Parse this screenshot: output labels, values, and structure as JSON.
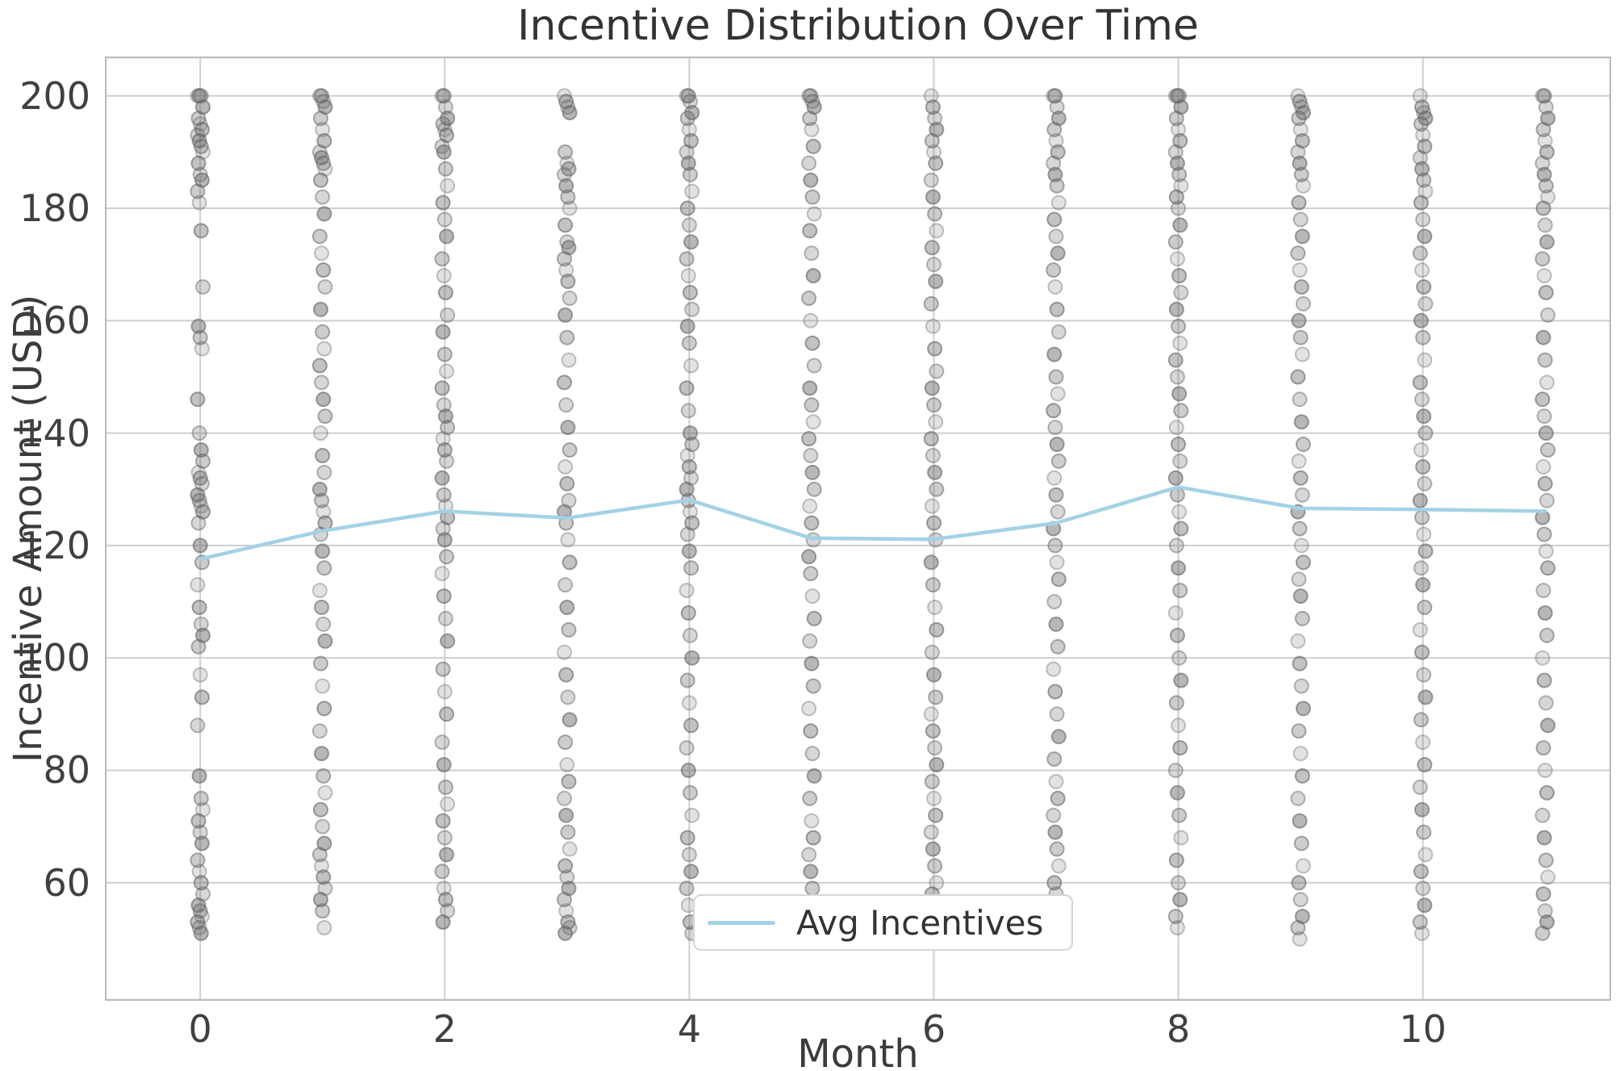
{
  "chart_data": {
    "type": "scatter",
    "title": "Incentive Distribution Over Time",
    "xlabel": "Month",
    "ylabel": "Incentive Amount (USD)",
    "xlim": [
      -0.78,
      11.54
    ],
    "ylim": [
      39,
      207
    ],
    "grid": true,
    "xticks": [
      0,
      2,
      4,
      6,
      8,
      10
    ],
    "yticks": [
      60,
      80,
      100,
      120,
      140,
      160,
      180,
      200
    ],
    "legend": {
      "label": "Avg Incentives",
      "position": "lower center"
    },
    "series": [
      {
        "name": "Avg Incentives",
        "kind": "line",
        "x": [
          0,
          1,
          2,
          3,
          4,
          5,
          6,
          7,
          8,
          9,
          10,
          11
        ],
        "y": [
          117.6,
          122.6,
          126.1,
          124.9,
          128.1,
          121.3,
          121.1,
          124.0,
          130.4,
          126.6,
          126.4,
          126.1
        ]
      }
    ],
    "scatter_points": {
      "months": [
        0,
        1,
        2,
        3,
        4,
        5,
        6,
        7,
        8,
        9,
        10,
        11
      ],
      "values_by_month": [
        [
          200,
          200,
          200,
          198,
          196,
          195,
          194,
          193,
          192,
          191,
          190,
          188,
          186,
          185,
          183,
          181,
          176,
          166,
          159,
          157,
          155,
          146,
          140,
          137,
          135,
          133,
          132,
          131,
          129,
          128,
          127,
          126,
          124,
          120,
          117,
          113,
          109,
          106,
          104,
          102,
          97,
          93,
          88,
          79,
          75,
          73,
          71,
          69,
          67,
          64,
          62,
          60,
          58,
          56,
          55,
          54,
          53,
          52,
          51
        ],
        [
          200,
          200,
          199,
          198,
          196,
          194,
          192,
          190,
          189,
          188,
          187,
          185,
          182,
          179,
          175,
          172,
          169,
          166,
          162,
          158,
          155,
          152,
          149,
          146,
          143,
          140,
          136,
          133,
          130,
          128,
          126,
          124,
          122,
          119,
          116,
          112,
          109,
          106,
          103,
          99,
          95,
          91,
          87,
          83,
          79,
          76,
          73,
          70,
          67,
          65,
          63,
          61,
          59,
          57,
          55,
          52
        ],
        [
          200,
          200,
          198,
          196,
          195,
          194,
          193,
          191,
          190,
          187,
          184,
          181,
          178,
          175,
          171,
          168,
          165,
          161,
          158,
          154,
          151,
          148,
          145,
          143,
          141,
          139,
          137,
          135,
          132,
          129,
          127,
          125,
          123,
          121,
          118,
          115,
          111,
          107,
          103,
          98,
          94,
          90,
          85,
          81,
          77,
          74,
          71,
          68,
          65,
          62,
          59,
          57,
          55,
          53
        ],
        [
          200,
          199,
          198,
          197,
          190,
          188,
          187,
          186,
          184,
          182,
          180,
          177,
          174,
          173,
          171,
          169,
          167,
          164,
          161,
          157,
          153,
          149,
          145,
          141,
          137,
          134,
          131,
          128,
          126,
          124,
          121,
          117,
          113,
          109,
          105,
          101,
          97,
          93,
          89,
          85,
          81,
          78,
          75,
          72,
          69,
          66,
          63,
          61,
          59,
          57,
          55,
          53,
          52,
          51
        ],
        [
          200,
          200,
          199,
          197,
          196,
          194,
          192,
          190,
          188,
          186,
          183,
          180,
          177,
          174,
          171,
          168,
          165,
          162,
          159,
          156,
          152,
          148,
          144,
          140,
          138,
          136,
          134,
          132,
          130,
          128,
          126,
          124,
          122,
          119,
          116,
          112,
          108,
          104,
          100,
          96,
          92,
          88,
          84,
          80,
          76,
          72,
          68,
          65,
          62,
          59,
          56,
          53,
          51
        ],
        [
          200,
          200,
          199,
          198,
          196,
          194,
          191,
          188,
          185,
          182,
          179,
          176,
          172,
          168,
          164,
          160,
          156,
          152,
          148,
          145,
          142,
          139,
          136,
          133,
          130,
          127,
          124,
          121,
          118,
          115,
          111,
          107,
          103,
          99,
          95,
          91,
          87,
          83,
          79,
          75,
          71,
          68,
          65,
          62,
          59,
          56,
          54,
          52,
          50
        ],
        [
          200,
          198,
          196,
          194,
          192,
          190,
          188,
          185,
          182,
          179,
          176,
          173,
          170,
          167,
          163,
          159,
          155,
          151,
          148,
          145,
          142,
          139,
          136,
          133,
          130,
          127,
          124,
          121,
          117,
          113,
          109,
          105,
          101,
          97,
          93,
          90,
          87,
          84,
          81,
          78,
          75,
          72,
          69,
          66,
          63,
          60,
          58,
          56
        ],
        [
          200,
          200,
          198,
          196,
          194,
          192,
          190,
          188,
          186,
          184,
          181,
          178,
          175,
          172,
          169,
          166,
          162,
          158,
          154,
          150,
          147,
          144,
          141,
          138,
          135,
          132,
          129,
          126,
          123,
          120,
          117,
          114,
          110,
          106,
          102,
          98,
          94,
          90,
          86,
          82,
          78,
          75,
          72,
          69,
          66,
          63,
          60,
          58,
          56,
          54,
          52,
          50
        ],
        [
          200,
          200,
          200,
          198,
          196,
          194,
          192,
          190,
          188,
          186,
          184,
          182,
          180,
          177,
          174,
          171,
          168,
          165,
          162,
          159,
          156,
          153,
          150,
          147,
          144,
          141,
          138,
          135,
          132,
          129,
          126,
          123,
          120,
          116,
          112,
          108,
          104,
          100,
          96,
          92,
          88,
          84,
          80,
          76,
          72,
          68,
          64,
          60,
          57,
          54,
          52
        ],
        [
          200,
          199,
          198,
          197,
          196,
          194,
          192,
          190,
          188,
          186,
          184,
          181,
          178,
          175,
          172,
          169,
          166,
          163,
          160,
          157,
          154,
          150,
          146,
          142,
          138,
          135,
          132,
          129,
          126,
          123,
          120,
          117,
          114,
          111,
          107,
          103,
          99,
          95,
          91,
          87,
          83,
          79,
          75,
          71,
          67,
          63,
          60,
          57,
          54,
          52,
          50
        ],
        [
          200,
          198,
          197,
          196,
          195,
          193,
          191,
          189,
          187,
          185,
          183,
          181,
          178,
          175,
          172,
          169,
          166,
          163,
          160,
          157,
          153,
          149,
          146,
          143,
          140,
          137,
          134,
          131,
          128,
          125,
          122,
          119,
          116,
          113,
          109,
          105,
          101,
          97,
          93,
          89,
          85,
          81,
          77,
          73,
          69,
          65,
          62,
          59,
          56,
          53,
          51
        ],
        [
          200,
          200,
          198,
          196,
          194,
          192,
          190,
          188,
          186,
          184,
          182,
          180,
          177,
          174,
          171,
          168,
          165,
          161,
          157,
          153,
          149,
          146,
          143,
          140,
          137,
          134,
          131,
          128,
          125,
          122,
          119,
          116,
          112,
          108,
          104,
          100,
          96,
          92,
          88,
          84,
          80,
          76,
          72,
          68,
          64,
          61,
          58,
          55,
          53,
          51
        ]
      ]
    },
    "colors": {
      "avg_line": "#a3d2e5",
      "point_fill": "#6f6f6f",
      "point_edge": "#636363",
      "grid": "#cfcfcf",
      "frame": "#bdbdbd",
      "text": "#3b3b3b"
    }
  }
}
